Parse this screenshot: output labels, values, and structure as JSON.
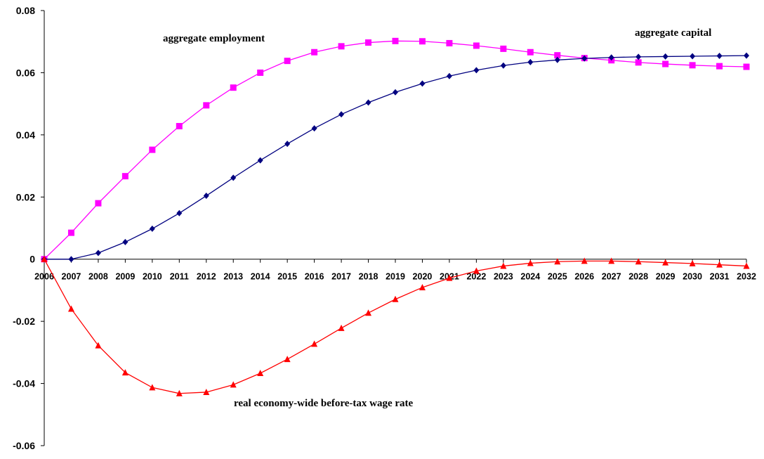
{
  "chart_data": {
    "type": "line",
    "title": "",
    "xlabel": "",
    "ylabel": "",
    "ylim": [
      -0.06,
      0.08
    ],
    "y_ticks": [
      "0.08",
      "0.06",
      "0.04",
      "0.02",
      "0",
      "-0.02",
      "-0.04",
      "-0.06"
    ],
    "categories": [
      "2006",
      "2007",
      "2008",
      "2009",
      "2010",
      "2011",
      "2012",
      "2013",
      "2014",
      "2015",
      "2016",
      "2017",
      "2018",
      "2019",
      "2020",
      "2021",
      "2022",
      "2023",
      "2024",
      "2025",
      "2026",
      "2027",
      "2028",
      "2029",
      "2030",
      "2031",
      "2032"
    ],
    "grid": false,
    "legend": "none",
    "series": [
      {
        "name": "aggregate employment",
        "color": "#FF00FF",
        "marker": "square",
        "values": [
          0,
          0.0085,
          0.018,
          0.0267,
          0.0352,
          0.0428,
          0.0495,
          0.0552,
          0.06,
          0.0638,
          0.0666,
          0.0685,
          0.0697,
          0.0702,
          0.0701,
          0.0695,
          0.0687,
          0.0677,
          0.0666,
          0.0656,
          0.0647,
          0.064,
          0.0633,
          0.0628,
          0.0624,
          0.0621,
          0.0619
        ]
      },
      {
        "name": "aggregate capital",
        "color": "#000080",
        "marker": "diamond",
        "values": [
          0,
          0,
          0.002,
          0.0055,
          0.0098,
          0.0148,
          0.0204,
          0.0262,
          0.0318,
          0.0371,
          0.0421,
          0.0466,
          0.0504,
          0.0537,
          0.0565,
          0.0589,
          0.0608,
          0.0623,
          0.0634,
          0.0641,
          0.0646,
          0.0649,
          0.0651,
          0.0652,
          0.0653,
          0.0654,
          0.0655
        ]
      },
      {
        "name": "real economy-wide before-tax wage rate",
        "color": "#FF0000",
        "marker": "triangle",
        "values": [
          0,
          -0.016,
          -0.0278,
          -0.0365,
          -0.0413,
          -0.0432,
          -0.0428,
          -0.0404,
          -0.0367,
          -0.0322,
          -0.0273,
          -0.0222,
          -0.0173,
          -0.0129,
          -0.0091,
          -0.0061,
          -0.0038,
          -0.0022,
          -0.0013,
          -0.0008,
          -0.0006,
          -0.0006,
          -0.0008,
          -0.0011,
          -0.0014,
          -0.0018,
          -0.0022
        ]
      }
    ]
  },
  "labels": {
    "employment": "aggregate employment",
    "capital": "aggregate capital",
    "wage": "real economy-wide before-tax wage rate"
  }
}
